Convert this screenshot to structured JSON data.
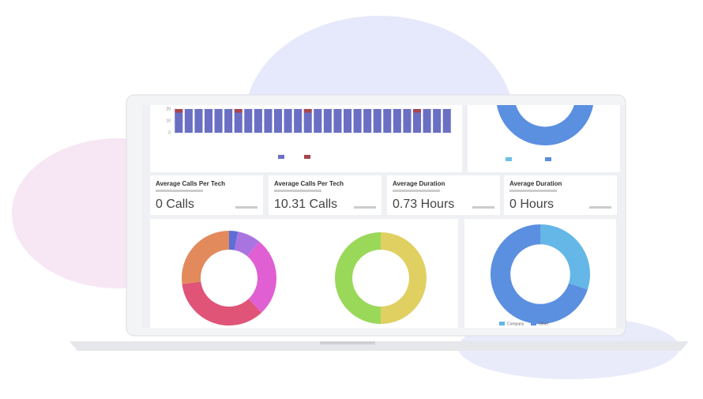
{
  "cards": [
    {
      "title": "Average Calls Per Tech",
      "value": "0 Calls"
    },
    {
      "title": "Average Calls Per Tech",
      "value": "10.31 Calls"
    },
    {
      "title": "Average Duration",
      "value": "0.73 Hours"
    },
    {
      "title": "Average Duration",
      "value": "0 Hours"
    }
  ],
  "bar_chart": {
    "type": "bar",
    "ylim": [
      0,
      20
    ],
    "yticks": [
      0,
      10,
      20
    ],
    "series": [
      {
        "color": "#6a6fc4",
        "values": [
          17,
          20,
          20,
          20,
          20,
          20,
          17,
          20,
          20,
          20,
          20,
          20,
          20,
          17,
          20,
          20,
          20,
          20,
          20,
          20,
          20,
          20,
          20,
          20,
          17,
          20,
          20,
          20
        ]
      },
      {
        "color": "#a8454f",
        "values": [
          3,
          0,
          0,
          0,
          0,
          0,
          3,
          0,
          0,
          0,
          0,
          0,
          0,
          3,
          0,
          0,
          0,
          0,
          0,
          0,
          0,
          0,
          0,
          0,
          3,
          0,
          0,
          0
        ]
      }
    ]
  },
  "donut_top": {
    "type": "donut",
    "values": [
      88,
      12
    ],
    "colors": [
      "#5b8fe0",
      "#6cc0e6"
    ]
  },
  "donut_left": {
    "type": "donut",
    "values": [
      3,
      8,
      27,
      35,
      27
    ],
    "colors": [
      "#5b6fd6",
      "#a974e0",
      "#e05fd3",
      "#e05478",
      "#e38a5c"
    ]
  },
  "donut_mid": {
    "type": "donut",
    "values": [
      50,
      50
    ],
    "colors": [
      "#e0d062",
      "#9ad85a"
    ]
  },
  "donut_right": {
    "type": "donut",
    "values": [
      30,
      70
    ],
    "colors": [
      "#64b7e6",
      "#5b8fe0"
    ],
    "legend": [
      "Company",
      "Other"
    ]
  }
}
